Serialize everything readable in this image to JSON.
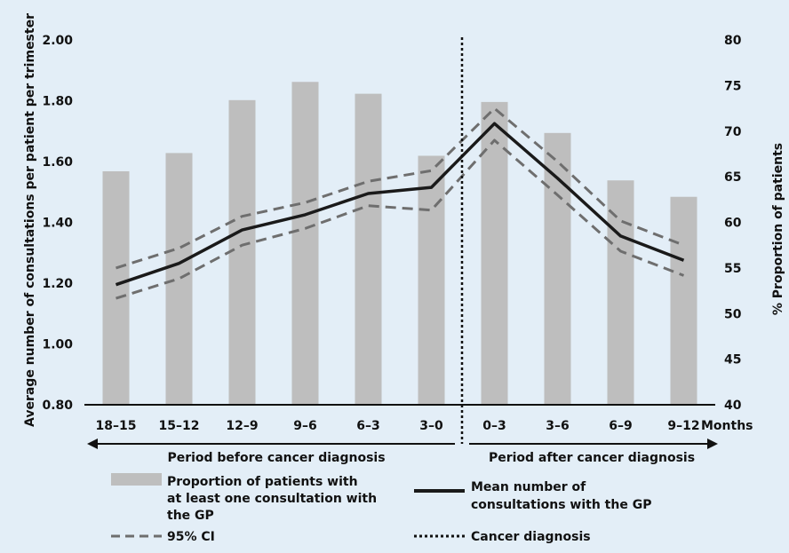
{
  "chart_data": {
    "type": "bar+line",
    "categories": [
      "18–15",
      "15–12",
      "12–9",
      "9–6",
      "6–3",
      "3–0",
      "0–3",
      "3–6",
      "6–9",
      "9–12"
    ],
    "x_unit_label": "Months",
    "y_left": {
      "label": "Average number of consultations per patient  per trimester",
      "ticks": [
        "0.80",
        "1.00",
        "1.20",
        "1.40",
        "1.60",
        "1.80",
        "2.00"
      ],
      "lim": [
        0.8,
        2.0
      ]
    },
    "y_right": {
      "label": "% Proportion of patients",
      "ticks": [
        "40",
        "45",
        "50",
        "55",
        "60",
        "65",
        "70",
        "75",
        "80"
      ],
      "lim": [
        40,
        80
      ]
    },
    "bars": {
      "name": "Proportion of patients with at least one consultation with the GP",
      "axis": "right",
      "color": "#bebebe",
      "values": [
        65.6,
        67.6,
        73.4,
        75.4,
        74.1,
        67.3,
        73.2,
        69.8,
        64.6,
        62.8
      ]
    },
    "lines": [
      {
        "name": "Mean number of consultations with the GP",
        "axis": "left",
        "style": "solid",
        "color": "#1a1a1a",
        "values": [
          1.195,
          1.265,
          1.375,
          1.425,
          1.495,
          1.515,
          1.725,
          1.545,
          1.355,
          1.275
        ]
      },
      {
        "name": "95% CI",
        "axis": "left",
        "style": "dashed",
        "color": "#6e6e6e",
        "values": [
          1.25,
          1.315,
          1.42,
          1.465,
          1.535,
          1.57,
          1.775,
          1.6,
          1.405,
          1.325
        ]
      },
      {
        "name": "95% CI",
        "axis": "left",
        "style": "dashed",
        "color": "#6e6e6e",
        "values": [
          1.15,
          1.215,
          1.325,
          1.38,
          1.455,
          1.44,
          1.67,
          1.49,
          1.305,
          1.225
        ]
      }
    ],
    "diagnosis_marker": "Cancer diagnosis",
    "periods": [
      "Period before cancer diagnosis",
      "Period after cancer diagnosis"
    ],
    "legend": {
      "bars_lines": [
        "Proportion of patients with",
        "at least one consultation with",
        "the GP"
      ],
      "mean_lines": [
        "Mean number of",
        "consultations with the GP"
      ],
      "ci": "95% CI",
      "diagnosis": "Cancer diagnosis"
    }
  }
}
